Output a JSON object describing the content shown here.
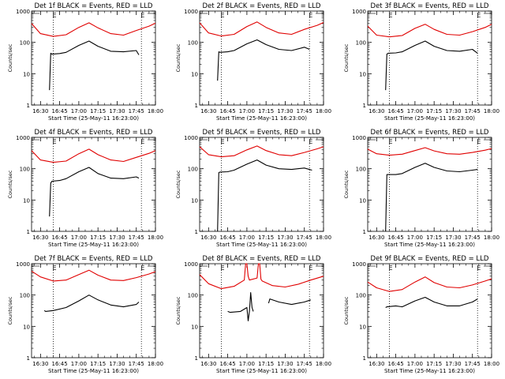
{
  "chart_data": [
    {
      "type": "line",
      "title": "Det 1f BLACK = Events, RED = LLD",
      "xlabel": "Start Time (25-May-11 16:23:00)",
      "ylabel": "Counts/sec",
      "yscale": "log",
      "ylim": [
        1,
        1000
      ],
      "yticks": [
        "1",
        "10",
        "100",
        "1000"
      ],
      "xlim": [
        "16:23",
        "18:00"
      ],
      "xticks": [
        "16:30",
        "16:45",
        "17:00",
        "17:15",
        "17:30",
        "17:45",
        "18:00"
      ],
      "markers": [
        {
          "label": "E",
          "x": "16:40"
        },
        {
          "label": "E",
          "x": "17:49"
        }
      ],
      "series": [
        {
          "color": "#e00000",
          "x": [
            "16:23",
            "16:30",
            "16:40",
            "16:50",
            "17:00",
            "17:08",
            "17:15",
            "17:25",
            "17:35",
            "17:45",
            "17:55",
            "18:00"
          ],
          "values": [
            400,
            190,
            155,
            175,
            300,
            420,
            290,
            190,
            170,
            240,
            330,
            410
          ]
        },
        {
          "color": "#000000",
          "x": [
            "16:37",
            "16:38",
            "16:39",
            "16:45",
            "16:50",
            "17:00",
            "17:08",
            "17:15",
            "17:25",
            "17:35",
            "17:45",
            "17:47"
          ],
          "values": [
            3,
            45,
            42,
            44,
            48,
            80,
            110,
            75,
            52,
            50,
            55,
            40
          ]
        }
      ]
    },
    {
      "type": "line",
      "title": "Det 2f BLACK = Events, RED = LLD",
      "xlabel": "Start Time (25-May-11 16:23:00)",
      "ylabel": "Counts/sec",
      "yscale": "log",
      "ylim": [
        1,
        1000
      ],
      "yticks": [
        "1",
        "10",
        "100",
        "1000"
      ],
      "xlim": [
        "16:23",
        "18:00"
      ],
      "xticks": [
        "16:30",
        "16:45",
        "17:00",
        "17:15",
        "17:30",
        "17:45",
        "18:00"
      ],
      "markers": [
        {
          "label": "E",
          "x": "16:40"
        },
        {
          "label": "E",
          "x": "17:49"
        }
      ],
      "series": [
        {
          "color": "#e00000",
          "x": [
            "16:23",
            "16:30",
            "16:40",
            "16:50",
            "17:00",
            "17:08",
            "17:15",
            "17:25",
            "17:35",
            "17:45",
            "17:55",
            "18:00"
          ],
          "values": [
            420,
            200,
            160,
            180,
            320,
            450,
            300,
            200,
            180,
            260,
            350,
            430
          ]
        },
        {
          "color": "#000000",
          "x": [
            "16:37",
            "16:38",
            "16:39",
            "16:45",
            "16:50",
            "17:00",
            "17:08",
            "17:15",
            "17:25",
            "17:35",
            "17:45",
            "17:49"
          ],
          "values": [
            6,
            50,
            48,
            50,
            55,
            90,
            120,
            85,
            60,
            55,
            70,
            60
          ]
        }
      ]
    },
    {
      "type": "line",
      "title": "Det 3f BLACK = Events, RED = LLD",
      "xlabel": "Start Time (25-May-11 16:23:00)",
      "ylabel": "Counts/sec",
      "yscale": "log",
      "ylim": [
        1,
        1000
      ],
      "yticks": [
        "1",
        "10",
        "100",
        "1000"
      ],
      "xlim": [
        "16:23",
        "18:00"
      ],
      "xticks": [
        "16:30",
        "16:45",
        "17:00",
        "17:15",
        "17:30",
        "17:45",
        "18:00"
      ],
      "markers": [
        {
          "label": "E",
          "x": "16:40"
        },
        {
          "label": "E",
          "x": "17:49"
        }
      ],
      "series": [
        {
          "color": "#e00000",
          "x": [
            "16:23",
            "16:30",
            "16:40",
            "16:50",
            "17:00",
            "17:08",
            "17:15",
            "17:25",
            "17:35",
            "17:45",
            "17:55",
            "18:00"
          ],
          "values": [
            330,
            170,
            150,
            165,
            280,
            380,
            260,
            180,
            170,
            220,
            300,
            380
          ]
        },
        {
          "color": "#000000",
          "x": [
            "16:37",
            "16:38",
            "16:39",
            "16:45",
            "16:50",
            "17:00",
            "17:08",
            "17:15",
            "17:25",
            "17:35",
            "17:45",
            "17:49"
          ],
          "values": [
            3,
            42,
            45,
            46,
            50,
            80,
            110,
            75,
            55,
            52,
            60,
            45
          ]
        }
      ]
    },
    {
      "type": "line",
      "title": "Det 4f BLACK = Events, RED = LLD",
      "xlabel": "Start Time (25-May-11 16:23:00)",
      "ylabel": "Counts/sec",
      "yscale": "log",
      "ylim": [
        1,
        1000
      ],
      "yticks": [
        "1",
        "10",
        "100",
        "1000"
      ],
      "xlim": [
        "16:23",
        "18:00"
      ],
      "xticks": [
        "16:30",
        "16:45",
        "17:00",
        "17:15",
        "17:30",
        "17:45",
        "18:00"
      ],
      "markers": [
        {
          "label": "E",
          "x": "16:40"
        },
        {
          "label": "E",
          "x": "17:49"
        }
      ],
      "series": [
        {
          "color": "#e00000",
          "x": [
            "16:23",
            "16:30",
            "16:40",
            "16:50",
            "17:00",
            "17:08",
            "17:15",
            "17:25",
            "17:35",
            "17:45",
            "17:55",
            "18:00"
          ],
          "values": [
            380,
            190,
            160,
            175,
            300,
            420,
            280,
            190,
            170,
            230,
            310,
            380
          ]
        },
        {
          "color": "#000000",
          "x": [
            "16:37",
            "16:38",
            "16:39",
            "16:45",
            "16:50",
            "17:00",
            "17:08",
            "17:15",
            "17:25",
            "17:35",
            "17:45",
            "17:47"
          ],
          "values": [
            3,
            35,
            40,
            42,
            48,
            80,
            110,
            70,
            50,
            48,
            55,
            50
          ]
        }
      ]
    },
    {
      "type": "line",
      "title": "Det 5f BLACK = Events, RED = LLD",
      "xlabel": "Start Time (25-May-11 16:23:00)",
      "ylabel": "Counts/sec",
      "yscale": "log",
      "ylim": [
        1,
        1000
      ],
      "yticks": [
        "1",
        "10",
        "100",
        "1000"
      ],
      "xlim": [
        "16:23",
        "18:00"
      ],
      "xticks": [
        "16:30",
        "16:45",
        "17:00",
        "17:15",
        "17:30",
        "17:45",
        "18:00"
      ],
      "markers": [
        {
          "label": "E",
          "x": "16:40"
        },
        {
          "label": "E",
          "x": "17:49"
        }
      ],
      "series": [
        {
          "color": "#e00000",
          "x": [
            "16:23",
            "16:30",
            "16:40",
            "16:50",
            "17:00",
            "17:08",
            "17:15",
            "17:25",
            "17:35",
            "17:45",
            "17:55",
            "18:00"
          ],
          "values": [
            500,
            280,
            240,
            260,
            400,
            530,
            380,
            280,
            260,
            330,
            430,
            500
          ]
        },
        {
          "color": "#000000",
          "x": [
            "16:37",
            "16:38",
            "16:39",
            "16:45",
            "16:50",
            "17:00",
            "17:08",
            "17:15",
            "17:25",
            "17:35",
            "17:45",
            "17:51"
          ],
          "values": [
            1,
            75,
            78,
            80,
            90,
            140,
            190,
            130,
            100,
            95,
            105,
            90
          ]
        }
      ]
    },
    {
      "type": "line",
      "title": "Det 6f BLACK = Events, RED = LLD",
      "xlabel": "Start Time (25-May-11 16:23:00)",
      "ylabel": "Counts/sec",
      "yscale": "log",
      "ylim": [
        1,
        1000
      ],
      "yticks": [
        "1",
        "10",
        "100",
        "1000"
      ],
      "xlim": [
        "16:23",
        "18:00"
      ],
      "xticks": [
        "16:30",
        "16:45",
        "17:00",
        "17:15",
        "17:30",
        "17:45",
        "18:00"
      ],
      "markers": [
        {
          "label": "E",
          "x": "16:40"
        },
        {
          "label": "E",
          "x": "17:49"
        }
      ],
      "series": [
        {
          "color": "#e00000",
          "x": [
            "16:23",
            "16:30",
            "16:40",
            "16:50",
            "17:00",
            "17:08",
            "17:15",
            "17:25",
            "17:35",
            "17:45",
            "17:55",
            "18:00"
          ],
          "values": [
            420,
            300,
            270,
            290,
            380,
            470,
            370,
            300,
            290,
            330,
            390,
            440
          ]
        },
        {
          "color": "#000000",
          "x": [
            "16:37",
            "16:38",
            "16:39",
            "16:45",
            "16:50",
            "17:00",
            "17:08",
            "17:15",
            "17:25",
            "17:35",
            "17:45",
            "17:49"
          ],
          "values": [
            1,
            65,
            65,
            65,
            70,
            110,
            150,
            110,
            85,
            80,
            90,
            95
          ]
        }
      ]
    },
    {
      "type": "line",
      "title": "Det 7f BLACK = Events, RED = LLD",
      "xlabel": "Start Time (25-May-11 16:23:00)",
      "ylabel": "Counts/sec",
      "yscale": "log",
      "ylim": [
        1,
        1000
      ],
      "yticks": [
        "1",
        "10",
        "100",
        "1000"
      ],
      "xlim": [
        "16:23",
        "18:00"
      ],
      "xticks": [
        "16:30",
        "16:45",
        "17:00",
        "17:15",
        "17:30",
        "17:45",
        "18:00"
      ],
      "markers": [
        {
          "label": "E",
          "x": "16:40"
        },
        {
          "label": "E",
          "x": "17:49"
        }
      ],
      "series": [
        {
          "color": "#e00000",
          "x": [
            "16:23",
            "16:30",
            "16:40",
            "16:50",
            "17:00",
            "17:08",
            "17:15",
            "17:25",
            "17:35",
            "17:45",
            "17:55",
            "18:00"
          ],
          "values": [
            580,
            380,
            280,
            300,
            450,
            620,
            430,
            300,
            290,
            360,
            470,
            560
          ]
        },
        {
          "color": "#000000",
          "x": [
            "16:33",
            "16:34",
            "16:40",
            "16:50",
            "17:00",
            "17:08",
            "17:15",
            "17:25",
            "17:35",
            "17:45",
            "17:47"
          ],
          "values": [
            32,
            30,
            32,
            40,
            65,
            100,
            70,
            48,
            42,
            50,
            60
          ]
        }
      ]
    },
    {
      "type": "line",
      "title": "Det 8f BLACK = Events, RED = LLD",
      "xlabel": "Start Time (25-May-11 16:23:00)",
      "ylabel": "Counts/sec",
      "yscale": "log",
      "ylim": [
        1,
        1000
      ],
      "yticks": [
        "1",
        "10",
        "100",
        "1000"
      ],
      "xlim": [
        "16:23",
        "18:00"
      ],
      "xticks": [
        "16:30",
        "16:45",
        "17:00",
        "17:15",
        "17:30",
        "17:45",
        "18:00"
      ],
      "markers": [
        {
          "label": "E",
          "x": "16:40"
        },
        {
          "label": "E",
          "x": "17:49"
        }
      ],
      "series": [
        {
          "color": "#e00000",
          "x": [
            "16:23",
            "16:30",
            "16:40",
            "16:50",
            "16:58",
            "16:59",
            "17:00",
            "17:01",
            "17:02",
            "17:08",
            "17:09",
            "17:10",
            "17:11",
            "17:12",
            "17:20",
            "17:30",
            "17:40",
            "17:50",
            "18:00"
          ],
          "values": [
            450,
            230,
            160,
            190,
            300,
            1000,
            1000,
            400,
            300,
            350,
            1000,
            1000,
            320,
            280,
            200,
            180,
            220,
            300,
            400
          ]
        },
        {
          "color": "#000000",
          "x": [
            "16:45",
            "16:47",
            "16:55",
            "17:00",
            "17:01",
            "17:02",
            "17:03",
            "17:04",
            "17:05"
          ],
          "values": [
            30,
            28,
            30,
            40,
            15,
            30,
            120,
            40,
            30
          ]
        },
        {
          "color": "#000000",
          "x": [
            "17:17",
            "17:18",
            "17:25",
            "17:35",
            "17:45",
            "17:50"
          ],
          "values": [
            55,
            75,
            60,
            50,
            60,
            70
          ]
        }
      ]
    },
    {
      "type": "line",
      "title": "Det 9f BLACK = Events, RED = LLD",
      "xlabel": "Start Time (25-May-11 16:23:00)",
      "ylabel": "Counts/sec",
      "yscale": "log",
      "ylim": [
        1,
        1000
      ],
      "yticks": [
        "1",
        "10",
        "100",
        "1000"
      ],
      "xlim": [
        "16:23",
        "18:00"
      ],
      "xticks": [
        "16:30",
        "16:45",
        "17:00",
        "17:15",
        "17:30",
        "17:45",
        "18:00"
      ],
      "markers": [
        {
          "label": "E",
          "x": "16:40"
        },
        {
          "label": "E",
          "x": "17:49"
        }
      ],
      "series": [
        {
          "color": "#e00000",
          "x": [
            "16:23",
            "16:30",
            "16:40",
            "16:50",
            "17:00",
            "17:08",
            "17:15",
            "17:25",
            "17:35",
            "17:45",
            "17:55",
            "18:00"
          ],
          "values": [
            260,
            170,
            130,
            150,
            260,
            380,
            250,
            180,
            170,
            210,
            280,
            330
          ]
        },
        {
          "color": "#000000",
          "x": [
            "16:37",
            "16:38",
            "16:45",
            "16:50",
            "17:00",
            "17:08",
            "17:15",
            "17:25",
            "17:35",
            "17:45",
            "17:49"
          ],
          "values": [
            40,
            42,
            45,
            42,
            65,
            85,
            60,
            45,
            45,
            60,
            75
          ]
        }
      ]
    }
  ]
}
